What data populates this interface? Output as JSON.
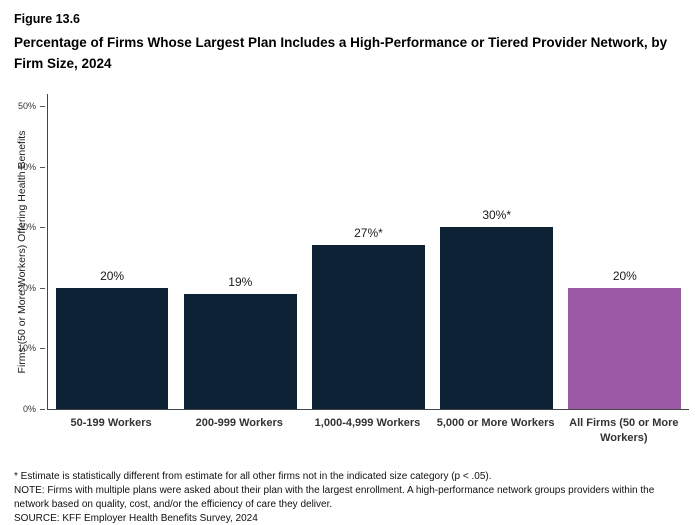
{
  "header": {
    "figure_label": "Figure 13.6",
    "title": "Percentage of Firms Whose Largest Plan Includes a High-Performance or Tiered Provider Network, by Firm Size, 2024"
  },
  "chart_data": {
    "type": "bar",
    "title": "Percentage of Firms Whose Largest Plan Includes a High-Performance or Tiered Provider Network, by Firm Size, 2024",
    "categories": [
      "50-199 Workers",
      "200-999 Workers",
      "1,000-4,999 Workers",
      "5,000 or More Workers",
      "All Firms (50 or More Workers)"
    ],
    "values": [
      20,
      19,
      27,
      30,
      20
    ],
    "value_labels": [
      "20%",
      "19%",
      "27%*",
      "30%*",
      "20%"
    ],
    "bar_colors": [
      "#0e2236",
      "#0e2236",
      "#0e2236",
      "#0e2236",
      "#9c59a5"
    ],
    "xlabel": "",
    "ylabel": "Firms (50 or More Workers) Offering Health Benefits",
    "ylim": [
      0,
      52
    ],
    "yticks": [
      0,
      10,
      20,
      30,
      40,
      50
    ],
    "ytick_labels": [
      "0%",
      "10%",
      "20%",
      "30%",
      "40%",
      "50%"
    ],
    "grid": false,
    "legend": false
  },
  "footnotes": {
    "asterisk": "* Estimate is statistically different from estimate for all other firms not in the indicated size category (p < .05).",
    "note": "NOTE: Firms with multiple plans were asked about their plan with the largest enrollment.  A high-performance network groups providers within the network based on quality, cost, and/or the efficiency of care they deliver.",
    "source": "SOURCE: KFF Employer Health Benefits Survey, 2024"
  }
}
